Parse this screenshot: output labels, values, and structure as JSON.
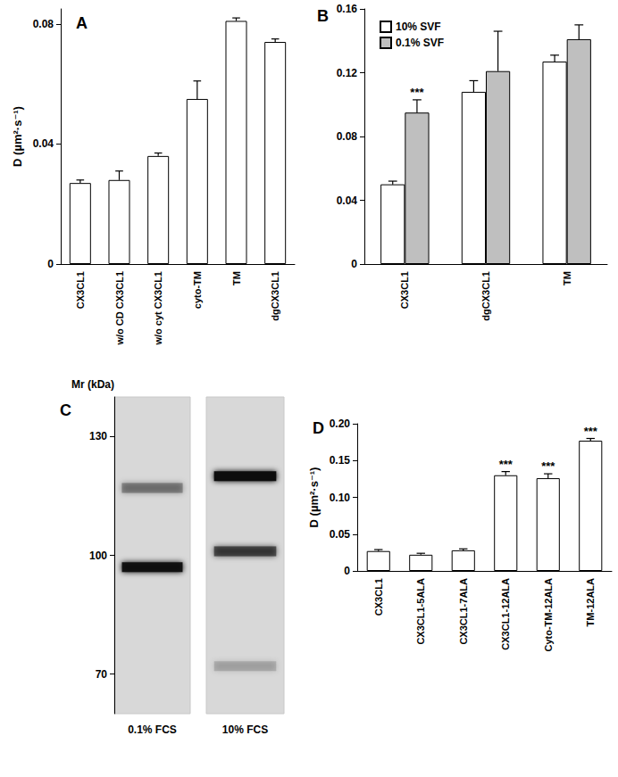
{
  "chart_data": [
    {
      "title": "A",
      "type": "bar",
      "y_label": "D (µm²·s⁻¹)",
      "categories": [
        "CX3CL1",
        "w/o CD CX3CL1",
        "w/o cyt CX3CL1",
        "cyto-TM",
        "TM",
        "dgCX3CL1"
      ],
      "values": [
        0.027,
        0.028,
        0.036,
        0.055,
        0.081,
        0.074
      ],
      "errors": [
        0.001,
        0.003,
        0.001,
        0.006,
        0.001,
        0.001
      ],
      "color": "#ffffff",
      "ylim": [
        0,
        0.085
      ],
      "yticks": [
        0,
        0.04,
        0.08
      ],
      "grid": false
    },
    {
      "title": "B",
      "type": "bar",
      "categories": [
        "CX3CL1",
        "dgCX3CL1",
        "TM"
      ],
      "series": [
        {
          "name": "10% SVF",
          "color": "#ffffff",
          "values": [
            0.05,
            0.108,
            0.127
          ],
          "errors": [
            0.002,
            0.007,
            0.004
          ]
        },
        {
          "name": "0.1% SVF",
          "color": "#bfbfbf",
          "values": [
            0.095,
            0.121,
            0.141
          ],
          "errors": [
            0.008,
            0.025,
            0.009
          ],
          "annotations": [
            "***",
            null,
            null
          ]
        }
      ],
      "ylim": [
        0,
        0.16
      ],
      "yticks": [
        0,
        0.04,
        0.08,
        0.12,
        0.16
      ],
      "legend": "top-left",
      "grid": false
    },
    {
      "title": "C",
      "type": "blot",
      "y_label": "Mr (kDa)",
      "ylim": [
        60,
        140
      ],
      "yticks": [
        130,
        100,
        70
      ],
      "lanes": [
        {
          "name": "0.1% FCS",
          "bands": [
            {
              "mr": 97,
              "intensity": 0.95
            },
            {
              "mr": 117,
              "intensity": 0.35
            }
          ]
        },
        {
          "name": "10% FCS",
          "bands": [
            {
              "mr": 120,
              "intensity": 1.0
            },
            {
              "mr": 101,
              "intensity": 0.6
            },
            {
              "mr": 72,
              "intensity": 0.15
            }
          ]
        }
      ]
    },
    {
      "title": "D",
      "type": "bar",
      "y_label": "D (µm²·s⁻¹)",
      "categories": [
        "CX3CL1",
        "CX3CL1-5ALA",
        "CX3CL1-7ALA",
        "CX3CL1-12ALA",
        "Cyto-TM-12ALA",
        "TM-12ALA"
      ],
      "values": [
        0.027,
        0.022,
        0.028,
        0.13,
        0.126,
        0.177
      ],
      "errors": [
        0.002,
        0.002,
        0.002,
        0.005,
        0.006,
        0.003
      ],
      "annotations": [
        null,
        null,
        null,
        "***",
        "***",
        "***"
      ],
      "color": "#ffffff",
      "ylim": [
        0,
        0.2
      ],
      "yticks": [
        0,
        0.05,
        {
          "value": 0.1,
          "label": "0.10"
        },
        0.15,
        {
          "value": 0.2,
          "label": "0.20"
        }
      ],
      "grid": false
    }
  ]
}
